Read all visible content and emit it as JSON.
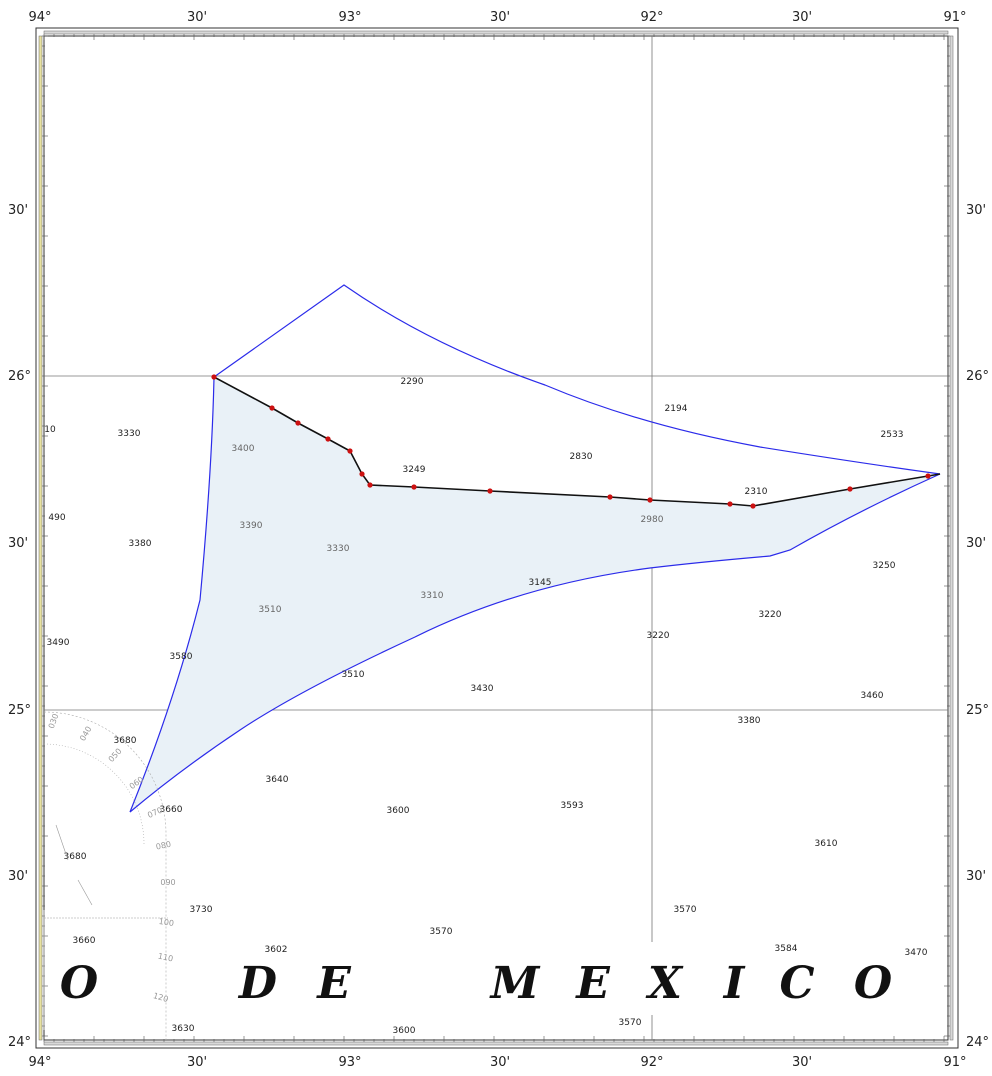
{
  "map": {
    "top_labels": [
      "94°",
      "30'",
      "93°",
      "30'",
      "92°",
      "30'",
      "91°"
    ],
    "bottom_labels": [
      "94°",
      "30'",
      "93°",
      "30'",
      "92°",
      "30'",
      "91°"
    ],
    "left_labels": [
      "30'",
      "26°",
      "30'",
      "25°",
      "30'",
      "24°"
    ],
    "right_labels": [
      "30'",
      "26°",
      "30'",
      "25°",
      "30'",
      "24°"
    ],
    "place_name_letters": [
      "O",
      "D",
      "E",
      "M",
      "E",
      "X",
      "I",
      "C",
      "O"
    ],
    "soundings": [
      "2290",
      "2194",
      "2533",
      "3330",
      "3400",
      "3249",
      "2830",
      "2310",
      "2980",
      "10",
      "490",
      "3380",
      "3390",
      "3330",
      "3145",
      "3250",
      "3510",
      "3310",
      "3220",
      "3220",
      "3490",
      "3580",
      "3510",
      "3430",
      "3460",
      "3680",
      "3380",
      "3640",
      "3660",
      "3600",
      "3593",
      "3610",
      "3680",
      "3730",
      "3570",
      "3660",
      "3602",
      "3570",
      "3584",
      "3470",
      "3630",
      "3600",
      "3570"
    ],
    "protractor_labels": [
      "030",
      "040",
      "050",
      "060",
      "070",
      "080",
      "090",
      "100",
      "110",
      "120"
    ],
    "colors": {
      "survey_fill": "#e9f1f7",
      "boundary_line": "#2b2bea",
      "track_line": "#111111",
      "track_points": "#cc1111",
      "graticule": "#777777"
    }
  }
}
